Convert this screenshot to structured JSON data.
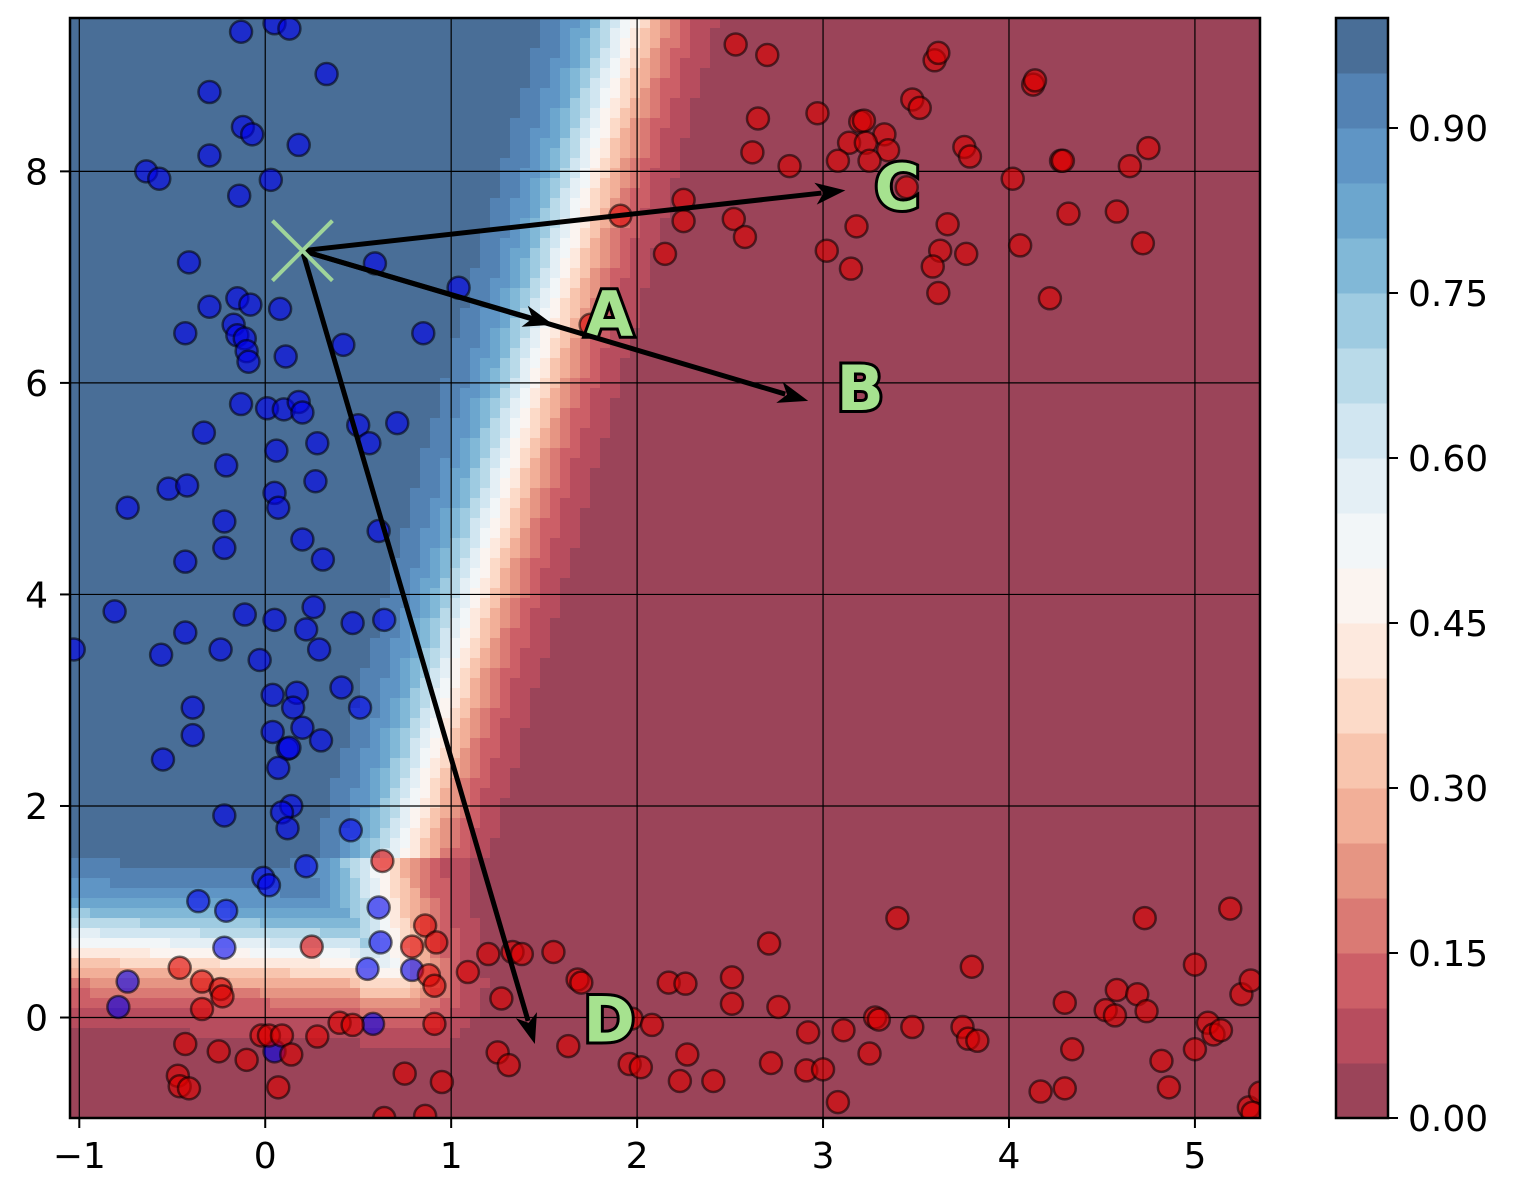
{
  "chart_data": {
    "type": "scatter",
    "title": "",
    "xlabel": "",
    "ylabel": "",
    "xlim": [
      -1.05,
      5.35
    ],
    "ylim": [
      -0.95,
      9.45
    ],
    "xticks": [
      -1,
      0,
      1,
      2,
      3,
      4,
      5
    ],
    "xtick_labels": [
      "−1",
      "0",
      "1",
      "2",
      "3",
      "4",
      "5"
    ],
    "yticks": [
      0,
      2,
      4,
      6,
      8
    ],
    "ytick_labels": [
      "0",
      "2",
      "4",
      "6",
      "8"
    ],
    "grid": true,
    "background_contour": {
      "description_free": true,
      "levels": [
        0.0,
        0.05,
        0.1,
        0.15,
        0.2,
        0.25,
        0.3,
        0.35,
        0.4,
        0.45,
        0.5,
        0.55,
        0.6,
        0.65,
        0.7,
        0.75,
        0.8,
        0.85,
        0.9,
        0.95,
        1.0
      ],
      "colormap": "RdBu",
      "alpha": 0.75
    },
    "colorbar": {
      "ticks": [
        0.0,
        0.15,
        0.3,
        0.45,
        0.6,
        0.75,
        0.9
      ],
      "tick_labels": [
        "0.00",
        "0.15",
        "0.30",
        "0.45",
        "0.60",
        "0.75",
        "0.90"
      ],
      "range": [
        0.0,
        1.0
      ]
    },
    "marker": {
      "x": 0.2,
      "y": 7.25,
      "color": "#9fd49a"
    },
    "arrows": [
      {
        "label": "A",
        "from": [
          0.2,
          7.25
        ],
        "to": [
          1.55,
          6.55
        ],
        "label_at": [
          1.85,
          6.65
        ]
      },
      {
        "label": "B",
        "from": [
          0.2,
          7.25
        ],
        "to": [
          2.92,
          5.83
        ],
        "label_at": [
          3.2,
          5.95
        ]
      },
      {
        "label": "C",
        "from": [
          0.2,
          7.25
        ],
        "to": [
          3.12,
          7.82
        ],
        "label_at": [
          3.4,
          7.85
        ]
      },
      {
        "label": "D",
        "from": [
          0.2,
          7.25
        ],
        "to": [
          1.45,
          -0.25
        ],
        "label_at": [
          1.85,
          -0.02
        ]
      }
    ],
    "series": [
      {
        "color": "#0000ee",
        "points": [
          [
            0.05,
            9.4
          ],
          [
            0.13,
            9.35
          ],
          [
            -0.13,
            9.32
          ],
          [
            0.33,
            8.92
          ],
          [
            -0.3,
            8.75
          ],
          [
            -0.12,
            8.42
          ],
          [
            -0.07,
            8.35
          ],
          [
            0.18,
            8.25
          ],
          [
            -0.3,
            8.15
          ],
          [
            -0.64,
            8.0
          ],
          [
            -0.57,
            7.93
          ],
          [
            0.03,
            7.92
          ],
          [
            -0.14,
            7.77
          ],
          [
            -0.41,
            7.14
          ],
          [
            0.59,
            7.13
          ],
          [
            1.04,
            6.9
          ],
          [
            -0.15,
            6.8
          ],
          [
            -0.3,
            6.72
          ],
          [
            -0.08,
            6.74
          ],
          [
            0.08,
            6.7
          ],
          [
            -0.17,
            6.55
          ],
          [
            -0.15,
            6.45
          ],
          [
            -0.43,
            6.47
          ],
          [
            -0.11,
            6.42
          ],
          [
            -0.1,
            6.3
          ],
          [
            -0.09,
            6.2
          ],
          [
            0.42,
            6.36
          ],
          [
            0.85,
            6.47
          ],
          [
            0.11,
            6.25
          ],
          [
            -0.13,
            5.8
          ],
          [
            0.01,
            5.76
          ],
          [
            0.1,
            5.75
          ],
          [
            0.18,
            5.82
          ],
          [
            0.2,
            5.72
          ],
          [
            0.71,
            5.62
          ],
          [
            0.5,
            5.6
          ],
          [
            0.56,
            5.43
          ],
          [
            -0.33,
            5.53
          ],
          [
            0.28,
            5.43
          ],
          [
            0.06,
            5.36
          ],
          [
            -0.21,
            5.22
          ],
          [
            -0.52,
            5.0
          ],
          [
            -0.42,
            5.03
          ],
          [
            0.27,
            5.07
          ],
          [
            0.05,
            4.96
          ],
          [
            -0.74,
            4.82
          ],
          [
            0.07,
            4.82
          ],
          [
            -0.22,
            4.69
          ],
          [
            0.61,
            4.6
          ],
          [
            0.2,
            4.52
          ],
          [
            -0.22,
            4.44
          ],
          [
            0.31,
            4.33
          ],
          [
            -0.43,
            4.31
          ],
          [
            -0.81,
            3.84
          ],
          [
            0.26,
            3.88
          ],
          [
            -0.11,
            3.81
          ],
          [
            0.05,
            3.76
          ],
          [
            0.47,
            3.73
          ],
          [
            0.64,
            3.76
          ],
          [
            0.22,
            3.67
          ],
          [
            -0.43,
            3.64
          ],
          [
            0.29,
            3.48
          ],
          [
            -0.24,
            3.48
          ],
          [
            -1.03,
            3.48
          ],
          [
            -0.56,
            3.43
          ],
          [
            -0.03,
            3.38
          ],
          [
            0.41,
            3.12
          ],
          [
            0.17,
            3.07
          ],
          [
            0.04,
            3.05
          ],
          [
            0.15,
            2.93
          ],
          [
            -0.39,
            2.93
          ],
          [
            0.51,
            2.93
          ],
          [
            0.2,
            2.74
          ],
          [
            0.04,
            2.7
          ],
          [
            -0.39,
            2.67
          ],
          [
            0.3,
            2.62
          ],
          [
            0.12,
            2.54
          ],
          [
            0.13,
            2.55
          ],
          [
            -0.55,
            2.44
          ],
          [
            0.07,
            2.36
          ],
          [
            0.14,
            2.0
          ],
          [
            0.09,
            1.94
          ],
          [
            -0.22,
            1.91
          ],
          [
            0.12,
            1.79
          ],
          [
            0.46,
            1.77
          ],
          [
            0.22,
            1.43
          ],
          [
            -0.01,
            1.32
          ],
          [
            0.02,
            1.25
          ],
          [
            -0.36,
            1.1
          ],
          [
            -0.21,
            1.01
          ],
          [
            0.61,
            1.04
          ],
          [
            0.62,
            0.71
          ],
          [
            -0.22,
            0.66
          ],
          [
            0.55,
            0.46
          ],
          [
            0.79,
            0.45
          ],
          [
            -0.74,
            0.34
          ],
          [
            -0.79,
            0.1
          ],
          [
            0.58,
            -0.06
          ],
          [
            0.05,
            -0.32
          ]
        ]
      },
      {
        "color": "#dd0000",
        "points": [
          [
            2.53,
            9.2
          ],
          [
            2.7,
            9.1
          ],
          [
            3.6,
            9.05
          ],
          [
            3.62,
            9.12
          ],
          [
            4.13,
            8.82
          ],
          [
            4.14,
            8.86
          ],
          [
            3.48,
            8.68
          ],
          [
            3.52,
            8.6
          ],
          [
            2.97,
            8.55
          ],
          [
            3.2,
            8.47
          ],
          [
            3.22,
            8.48
          ],
          [
            2.65,
            8.5
          ],
          [
            3.33,
            8.35
          ],
          [
            3.14,
            8.27
          ],
          [
            3.23,
            8.27
          ],
          [
            3.35,
            8.2
          ],
          [
            3.76,
            8.23
          ],
          [
            4.75,
            8.22
          ],
          [
            3.79,
            8.14
          ],
          [
            2.62,
            8.18
          ],
          [
            3.08,
            8.1
          ],
          [
            3.25,
            8.1
          ],
          [
            2.82,
            8.05
          ],
          [
            4.28,
            8.1
          ],
          [
            4.29,
            8.1
          ],
          [
            4.65,
            8.05
          ],
          [
            4.02,
            7.93
          ],
          [
            3.45,
            7.85
          ],
          [
            2.25,
            7.73
          ],
          [
            1.91,
            7.58
          ],
          [
            2.52,
            7.55
          ],
          [
            2.25,
            7.53
          ],
          [
            3.18,
            7.48
          ],
          [
            3.67,
            7.5
          ],
          [
            4.32,
            7.6
          ],
          [
            4.58,
            7.62
          ],
          [
            2.58,
            7.38
          ],
          [
            4.72,
            7.32
          ],
          [
            3.63,
            7.25
          ],
          [
            3.02,
            7.25
          ],
          [
            4.06,
            7.3
          ],
          [
            2.15,
            7.22
          ],
          [
            3.77,
            7.22
          ],
          [
            3.59,
            7.1
          ],
          [
            3.15,
            7.08
          ],
          [
            3.62,
            6.85
          ],
          [
            4.22,
            6.8
          ],
          [
            1.75,
            6.55
          ],
          [
            0.63,
            1.48
          ],
          [
            0.25,
            0.67
          ],
          [
            0.86,
            0.87
          ],
          [
            0.92,
            0.71
          ],
          [
            0.79,
            0.67
          ],
          [
            1.2,
            0.6
          ],
          [
            1.33,
            0.62
          ],
          [
            1.38,
            0.6
          ],
          [
            1.55,
            0.62
          ],
          [
            1.68,
            0.36
          ],
          [
            1.7,
            0.33
          ],
          [
            1.09,
            0.43
          ],
          [
            0.88,
            0.4
          ],
          [
            0.91,
            0.3
          ],
          [
            2.17,
            0.33
          ],
          [
            2.26,
            0.32
          ],
          [
            2.51,
            0.38
          ],
          [
            2.51,
            0.13
          ],
          [
            2.71,
            0.7
          ],
          [
            2.76,
            0.1
          ],
          [
            3.4,
            0.94
          ],
          [
            3.8,
            0.48
          ],
          [
            4.73,
            0.94
          ],
          [
            5.0,
            0.5
          ],
          [
            5.19,
            1.03
          ],
          [
            5.25,
            0.22
          ],
          [
            5.3,
            0.35
          ],
          [
            4.3,
            0.14
          ],
          [
            4.52,
            0.07
          ],
          [
            4.58,
            0.26
          ],
          [
            4.69,
            0.22
          ],
          [
            4.74,
            0.06
          ],
          [
            4.57,
            0.02
          ],
          [
            3.28,
            0.0
          ],
          [
            3.3,
            -0.02
          ],
          [
            3.48,
            -0.09
          ],
          [
            3.75,
            -0.09
          ],
          [
            3.78,
            -0.2
          ],
          [
            3.83,
            -0.22
          ],
          [
            5.07,
            -0.05
          ],
          [
            5.1,
            -0.16
          ],
          [
            5.14,
            -0.12
          ],
          [
            5.0,
            -0.3
          ],
          [
            -0.46,
            0.47
          ],
          [
            -0.34,
            0.34
          ],
          [
            -0.24,
            0.27
          ],
          [
            -0.23,
            0.2
          ],
          [
            -0.34,
            0.08
          ],
          [
            -0.43,
            -0.25
          ],
          [
            -0.25,
            -0.32
          ],
          [
            -0.02,
            -0.17
          ],
          [
            0.02,
            -0.17
          ],
          [
            0.09,
            -0.17
          ],
          [
            0.14,
            -0.35
          ],
          [
            0.28,
            -0.18
          ],
          [
            0.4,
            -0.05
          ],
          [
            0.47,
            -0.07
          ],
          [
            0.91,
            -0.06
          ],
          [
            1.27,
            0.18
          ],
          [
            1.25,
            -0.33
          ],
          [
            1.31,
            -0.45
          ],
          [
            1.63,
            -0.27
          ],
          [
            1.97,
            -0.01
          ],
          [
            2.08,
            -0.07
          ],
          [
            2.27,
            -0.35
          ],
          [
            1.96,
            -0.44
          ],
          [
            2.02,
            -0.47
          ],
          [
            2.23,
            -0.6
          ],
          [
            2.41,
            -0.6
          ],
          [
            2.72,
            -0.43
          ],
          [
            2.92,
            -0.14
          ],
          [
            3.11,
            -0.12
          ],
          [
            3.25,
            -0.34
          ],
          [
            2.91,
            -0.5
          ],
          [
            3.0,
            -0.49
          ],
          [
            3.08,
            -0.8
          ],
          [
            4.34,
            -0.3
          ],
          [
            4.17,
            -0.7
          ],
          [
            4.3,
            -0.67
          ],
          [
            4.82,
            -0.41
          ],
          [
            4.86,
            -0.66
          ],
          [
            5.29,
            -0.85
          ],
          [
            5.35,
            -0.71
          ],
          [
            5.31,
            -0.9
          ],
          [
            -0.47,
            -0.55
          ],
          [
            -0.46,
            -0.65
          ],
          [
            -0.41,
            -0.67
          ],
          [
            -0.1,
            -0.4
          ],
          [
            0.07,
            -0.66
          ],
          [
            0.75,
            -0.53
          ],
          [
            0.95,
            -0.61
          ],
          [
            0.64,
            -0.95
          ],
          [
            0.86,
            -0.93
          ]
        ]
      }
    ]
  }
}
